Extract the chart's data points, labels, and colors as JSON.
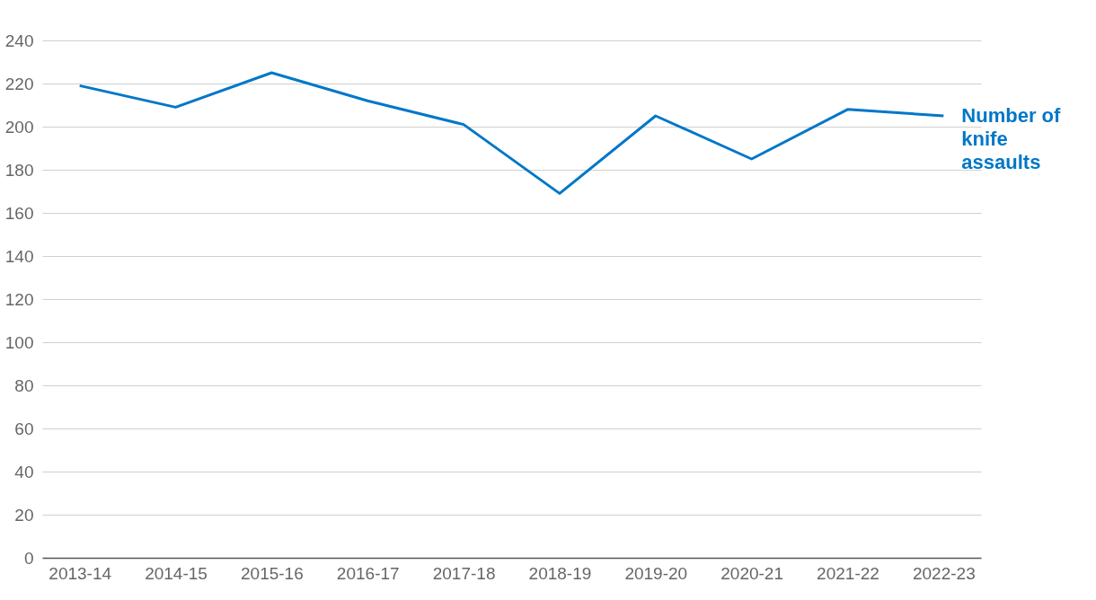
{
  "chart_data": {
    "type": "line",
    "categories": [
      "2013-14",
      "2014-15",
      "2015-16",
      "2016-17",
      "2017-18",
      "2018-19",
      "2019-20",
      "2020-21",
      "2021-22",
      "2022-23"
    ],
    "series": [
      {
        "name": "Number of knife assaults",
        "color": "#0077c8",
        "values": [
          219,
          209,
          225,
          212,
          201,
          169,
          205,
          185,
          208,
          205
        ]
      }
    ],
    "ylim": [
      0,
      240
    ],
    "yticks": [
      0,
      20,
      40,
      60,
      80,
      100,
      120,
      140,
      160,
      180,
      200,
      220,
      240
    ],
    "grid": "y",
    "legend": false,
    "marker": "none",
    "line_style": "solid"
  }
}
